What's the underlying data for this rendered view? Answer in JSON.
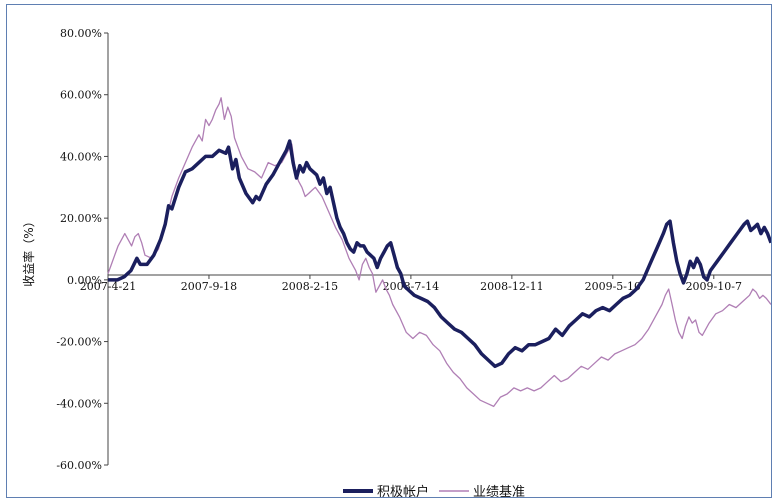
{
  "chart_data": {
    "type": "line",
    "title": "",
    "ylabel": "收益率（%）",
    "xlabel": "",
    "ylim": [
      -60,
      80
    ],
    "y_ticks": [
      80,
      60,
      40,
      20,
      0,
      -20,
      -40,
      -60
    ],
    "y_tick_labels": [
      "80.00%",
      "60.00%",
      "40.00%",
      "20.00%",
      "0.00%",
      "-20.00%",
      "-40.00%",
      "-60.00%"
    ],
    "x_range": [
      "2007-04-21",
      "2009-12-31"
    ],
    "x_ticks": [
      "2007-04-21",
      "2007-09-18",
      "2008-02-15",
      "2008-07-14",
      "2008-12-11",
      "2009-05-10",
      "2009-10-07"
    ],
    "x_tick_labels": [
      "2007-4-21",
      "2007-9-18",
      "2008-2-15",
      "2008-7-14",
      "2008-12-11",
      "2009-5-10",
      "2009-10-7"
    ],
    "grid": false,
    "legend_position": "bottom-right",
    "series": [
      {
        "name": "积极帐户",
        "color": "#1b1f5e",
        "points": [
          [
            "2007-04-21",
            0
          ],
          [
            "2007-05-05",
            0
          ],
          [
            "2007-05-15",
            1
          ],
          [
            "2007-05-25",
            3
          ],
          [
            "2007-06-03",
            7
          ],
          [
            "2007-06-08",
            5
          ],
          [
            "2007-06-18",
            5
          ],
          [
            "2007-06-28",
            8
          ],
          [
            "2007-07-08",
            13
          ],
          [
            "2007-07-15",
            18
          ],
          [
            "2007-07-20",
            24
          ],
          [
            "2007-07-25",
            23
          ],
          [
            "2007-08-04",
            30
          ],
          [
            "2007-08-14",
            35
          ],
          [
            "2007-08-24",
            36
          ],
          [
            "2007-09-03",
            38
          ],
          [
            "2007-09-13",
            40
          ],
          [
            "2007-09-23",
            40
          ],
          [
            "2007-10-03",
            42
          ],
          [
            "2007-10-13",
            41
          ],
          [
            "2007-10-17",
            43
          ],
          [
            "2007-10-23",
            36
          ],
          [
            "2007-10-28",
            39
          ],
          [
            "2007-11-02",
            33
          ],
          [
            "2007-11-12",
            28
          ],
          [
            "2007-11-22",
            25
          ],
          [
            "2007-11-27",
            27
          ],
          [
            "2007-12-02",
            26
          ],
          [
            "2007-12-12",
            31
          ],
          [
            "2007-12-22",
            34
          ],
          [
            "2008-01-01",
            38
          ],
          [
            "2008-01-11",
            42
          ],
          [
            "2008-01-16",
            45
          ],
          [
            "2008-01-21",
            38
          ],
          [
            "2008-01-26",
            33
          ],
          [
            "2008-01-31",
            37
          ],
          [
            "2008-02-05",
            35
          ],
          [
            "2008-02-10",
            38
          ],
          [
            "2008-02-15",
            36
          ],
          [
            "2008-02-25",
            34
          ],
          [
            "2008-03-01",
            31
          ],
          [
            "2008-03-06",
            33
          ],
          [
            "2008-03-11",
            28
          ],
          [
            "2008-03-16",
            30
          ],
          [
            "2008-03-21",
            25
          ],
          [
            "2008-03-26",
            20
          ],
          [
            "2008-03-31",
            17
          ],
          [
            "2008-04-05",
            15
          ],
          [
            "2008-04-10",
            12
          ],
          [
            "2008-04-15",
            10
          ],
          [
            "2008-04-20",
            9
          ],
          [
            "2008-04-25",
            12
          ],
          [
            "2008-04-30",
            11
          ],
          [
            "2008-05-05",
            11
          ],
          [
            "2008-05-10",
            9
          ],
          [
            "2008-05-15",
            8
          ],
          [
            "2008-05-20",
            7
          ],
          [
            "2008-05-25",
            4
          ],
          [
            "2008-05-30",
            7
          ],
          [
            "2008-06-04",
            9
          ],
          [
            "2008-06-09",
            11
          ],
          [
            "2008-06-14",
            12
          ],
          [
            "2008-06-19",
            8
          ],
          [
            "2008-06-24",
            4
          ],
          [
            "2008-06-29",
            2
          ],
          [
            "2008-07-04",
            -2
          ],
          [
            "2008-07-09",
            -3
          ],
          [
            "2008-07-14",
            -4
          ],
          [
            "2008-07-19",
            -5
          ],
          [
            "2008-07-29",
            -6
          ],
          [
            "2008-08-08",
            -7
          ],
          [
            "2008-08-18",
            -9
          ],
          [
            "2008-08-28",
            -12
          ],
          [
            "2008-09-07",
            -14
          ],
          [
            "2008-09-17",
            -16
          ],
          [
            "2008-09-27",
            -17
          ],
          [
            "2008-10-07",
            -19
          ],
          [
            "2008-10-17",
            -21
          ],
          [
            "2008-10-27",
            -24
          ],
          [
            "2008-11-06",
            -26
          ],
          [
            "2008-11-16",
            -28
          ],
          [
            "2008-11-26",
            -27
          ],
          [
            "2008-12-06",
            -24
          ],
          [
            "2008-12-16",
            -22
          ],
          [
            "2008-12-26",
            -23
          ],
          [
            "2009-01-05",
            -21
          ],
          [
            "2009-01-15",
            -21
          ],
          [
            "2009-01-25",
            -20
          ],
          [
            "2009-02-04",
            -19
          ],
          [
            "2009-02-14",
            -16
          ],
          [
            "2009-02-24",
            -18
          ],
          [
            "2009-03-06",
            -15
          ],
          [
            "2009-03-16",
            -13
          ],
          [
            "2009-03-26",
            -11
          ],
          [
            "2009-04-05",
            -12
          ],
          [
            "2009-04-15",
            -10
          ],
          [
            "2009-04-25",
            -9
          ],
          [
            "2009-05-05",
            -10
          ],
          [
            "2009-05-15",
            -8
          ],
          [
            "2009-05-25",
            -6
          ],
          [
            "2009-06-04",
            -5
          ],
          [
            "2009-06-14",
            -3
          ],
          [
            "2009-06-24",
            0
          ],
          [
            "2009-07-04",
            5
          ],
          [
            "2009-07-14",
            10
          ],
          [
            "2009-07-24",
            15
          ],
          [
            "2009-07-29",
            18
          ],
          [
            "2009-08-03",
            19
          ],
          [
            "2009-08-08",
            12
          ],
          [
            "2009-08-13",
            6
          ],
          [
            "2009-08-18",
            2
          ],
          [
            "2009-08-23",
            -1
          ],
          [
            "2009-08-28",
            2
          ],
          [
            "2009-09-02",
            6
          ],
          [
            "2009-09-07",
            4
          ],
          [
            "2009-09-12",
            7
          ],
          [
            "2009-09-17",
            5
          ],
          [
            "2009-09-22",
            1
          ],
          [
            "2009-09-27",
            0
          ],
          [
            "2009-10-02",
            3
          ],
          [
            "2009-10-12",
            6
          ],
          [
            "2009-10-22",
            9
          ],
          [
            "2009-11-01",
            12
          ],
          [
            "2009-11-11",
            15
          ],
          [
            "2009-11-21",
            18
          ],
          [
            "2009-11-26",
            19
          ],
          [
            "2009-12-01",
            16
          ],
          [
            "2009-12-06",
            17
          ],
          [
            "2009-12-11",
            18
          ],
          [
            "2009-12-16",
            15
          ],
          [
            "2009-12-21",
            17
          ],
          [
            "2009-12-26",
            15
          ],
          [
            "2009-12-31",
            12
          ]
        ]
      },
      {
        "name": "业绩基准",
        "color": "#b07fb5",
        "points": [
          [
            "2007-04-21",
            2
          ],
          [
            "2007-04-26",
            5
          ],
          [
            "2007-05-01",
            8
          ],
          [
            "2007-05-06",
            11
          ],
          [
            "2007-05-11",
            13
          ],
          [
            "2007-05-16",
            15
          ],
          [
            "2007-05-21",
            13
          ],
          [
            "2007-05-26",
            11
          ],
          [
            "2007-05-31",
            14
          ],
          [
            "2007-06-05",
            15
          ],
          [
            "2007-06-10",
            12
          ],
          [
            "2007-06-15",
            8
          ],
          [
            "2007-06-25",
            7
          ],
          [
            "2007-07-05",
            10
          ],
          [
            "2007-07-15",
            18
          ],
          [
            "2007-07-25",
            27
          ],
          [
            "2007-08-04",
            33
          ],
          [
            "2007-08-14",
            38
          ],
          [
            "2007-08-24",
            43
          ],
          [
            "2007-09-03",
            47
          ],
          [
            "2007-09-08",
            45
          ],
          [
            "2007-09-13",
            52
          ],
          [
            "2007-09-18",
            50
          ],
          [
            "2007-09-23",
            52
          ],
          [
            "2007-09-28",
            55
          ],
          [
            "2007-10-03",
            57
          ],
          [
            "2007-10-06",
            59
          ],
          [
            "2007-10-11",
            52
          ],
          [
            "2007-10-16",
            56
          ],
          [
            "2007-10-21",
            53
          ],
          [
            "2007-10-26",
            46
          ],
          [
            "2007-10-31",
            43
          ],
          [
            "2007-11-05",
            40
          ],
          [
            "2007-11-15",
            36
          ],
          [
            "2007-11-25",
            35
          ],
          [
            "2007-12-05",
            33
          ],
          [
            "2007-12-15",
            38
          ],
          [
            "2007-12-25",
            37
          ],
          [
            "2008-01-04",
            38
          ],
          [
            "2008-01-14",
            42
          ],
          [
            "2008-01-19",
            44
          ],
          [
            "2008-01-24",
            36
          ],
          [
            "2008-01-29",
            32
          ],
          [
            "2008-02-03",
            30
          ],
          [
            "2008-02-08",
            27
          ],
          [
            "2008-02-13",
            28
          ],
          [
            "2008-02-18",
            29
          ],
          [
            "2008-02-23",
            30
          ],
          [
            "2008-03-04",
            27
          ],
          [
            "2008-03-14",
            22
          ],
          [
            "2008-03-24",
            17
          ],
          [
            "2008-04-03",
            13
          ],
          [
            "2008-04-13",
            7
          ],
          [
            "2008-04-23",
            3
          ],
          [
            "2008-04-28",
            0
          ],
          [
            "2008-05-03",
            5
          ],
          [
            "2008-05-08",
            7
          ],
          [
            "2008-05-13",
            4
          ],
          [
            "2008-05-18",
            2
          ],
          [
            "2008-05-23",
            -4
          ],
          [
            "2008-05-28",
            -2
          ],
          [
            "2008-06-02",
            0
          ],
          [
            "2008-06-07",
            -3
          ],
          [
            "2008-06-12",
            -5
          ],
          [
            "2008-06-17",
            -8
          ],
          [
            "2008-06-27",
            -12
          ],
          [
            "2008-07-07",
            -17
          ],
          [
            "2008-07-17",
            -19
          ],
          [
            "2008-07-27",
            -17
          ],
          [
            "2008-08-06",
            -18
          ],
          [
            "2008-08-16",
            -21
          ],
          [
            "2008-08-26",
            -23
          ],
          [
            "2008-09-05",
            -27
          ],
          [
            "2008-09-15",
            -30
          ],
          [
            "2008-09-25",
            -32
          ],
          [
            "2008-10-05",
            -35
          ],
          [
            "2008-10-15",
            -37
          ],
          [
            "2008-10-25",
            -39
          ],
          [
            "2008-11-04",
            -40
          ],
          [
            "2008-11-14",
            -41
          ],
          [
            "2008-11-24",
            -38
          ],
          [
            "2008-12-04",
            -37
          ],
          [
            "2008-12-14",
            -35
          ],
          [
            "2008-12-24",
            -36
          ],
          [
            "2009-01-03",
            -35
          ],
          [
            "2009-01-13",
            -36
          ],
          [
            "2009-01-23",
            -35
          ],
          [
            "2009-02-02",
            -33
          ],
          [
            "2009-02-12",
            -31
          ],
          [
            "2009-02-22",
            -33
          ],
          [
            "2009-03-04",
            -32
          ],
          [
            "2009-03-14",
            -30
          ],
          [
            "2009-03-24",
            -28
          ],
          [
            "2009-04-03",
            -29
          ],
          [
            "2009-04-13",
            -27
          ],
          [
            "2009-04-23",
            -25
          ],
          [
            "2009-05-03",
            -26
          ],
          [
            "2009-05-13",
            -24
          ],
          [
            "2009-05-23",
            -23
          ],
          [
            "2009-06-02",
            -22
          ],
          [
            "2009-06-12",
            -21
          ],
          [
            "2009-06-22",
            -19
          ],
          [
            "2009-07-02",
            -16
          ],
          [
            "2009-07-12",
            -12
          ],
          [
            "2009-07-22",
            -8
          ],
          [
            "2009-07-27",
            -5
          ],
          [
            "2009-08-01",
            -3
          ],
          [
            "2009-08-06",
            -8
          ],
          [
            "2009-08-11",
            -13
          ],
          [
            "2009-08-16",
            -17
          ],
          [
            "2009-08-21",
            -19
          ],
          [
            "2009-08-26",
            -15
          ],
          [
            "2009-08-31",
            -12
          ],
          [
            "2009-09-05",
            -14
          ],
          [
            "2009-09-10",
            -13
          ],
          [
            "2009-09-15",
            -17
          ],
          [
            "2009-09-20",
            -18
          ],
          [
            "2009-09-30",
            -14
          ],
          [
            "2009-10-10",
            -11
          ],
          [
            "2009-10-20",
            -10
          ],
          [
            "2009-10-30",
            -8
          ],
          [
            "2009-11-09",
            -9
          ],
          [
            "2009-11-19",
            -7
          ],
          [
            "2009-11-29",
            -5
          ],
          [
            "2009-12-04",
            -3
          ],
          [
            "2009-12-09",
            -4
          ],
          [
            "2009-12-14",
            -6
          ],
          [
            "2009-12-19",
            -5
          ],
          [
            "2009-12-24",
            -6
          ],
          [
            "2009-12-31",
            -8
          ]
        ]
      }
    ]
  }
}
